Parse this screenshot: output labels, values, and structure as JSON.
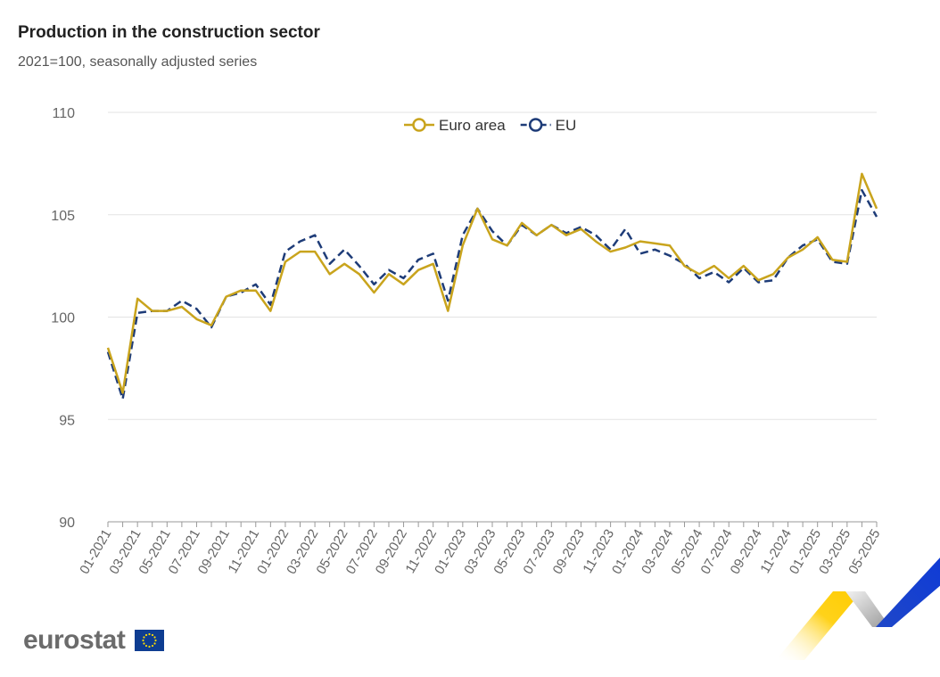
{
  "chart_data": {
    "type": "line",
    "title": "Production in the construction sector",
    "subtitle": "2021=100, seasonally adjusted series",
    "xlabel": "",
    "ylabel": "",
    "ylim": [
      90,
      110
    ],
    "yticks": [
      "110",
      "105",
      "100",
      "95",
      "90"
    ],
    "x": [
      "01-2021",
      "02-2021",
      "03-2021",
      "04-2021",
      "05-2021",
      "06-2021",
      "07-2021",
      "08-2021",
      "09-2021",
      "10-2021",
      "11-2021",
      "12-2021",
      "01-2022",
      "02-2022",
      "03-2022",
      "04-2022",
      "05-2022",
      "06-2022",
      "07-2022",
      "08-2022",
      "09-2022",
      "10-2022",
      "11-2022",
      "12-2022",
      "01-2023",
      "02-2023",
      "03-2023",
      "04-2023",
      "05-2023",
      "06-2023",
      "07-2023",
      "08-2023",
      "09-2023",
      "10-2023",
      "11-2023",
      "12-2023",
      "01-2024",
      "02-2024",
      "03-2024",
      "04-2024",
      "05-2024",
      "06-2024",
      "07-2024",
      "08-2024",
      "09-2024",
      "10-2024",
      "11-2024",
      "12-2024",
      "01-2025",
      "02-2025",
      "03-2025",
      "04-2025",
      "05-2025"
    ],
    "xtick_labels": [
      "01-2021",
      "03-2021",
      "05-2021",
      "07-2021",
      "09-2021",
      "11-2021",
      "01-2022",
      "03-2022",
      "05-2022",
      "07-2022",
      "09-2022",
      "11-2022",
      "01-2023",
      "03-2023",
      "05-2023",
      "07-2023",
      "09-2023",
      "11-2023",
      "01-2024",
      "03-2024",
      "05-2024",
      "07-2024",
      "09-2024",
      "11-2024",
      "01-2025",
      "03-2025",
      "05-2025"
    ],
    "legend_position": "top-center",
    "grid": true,
    "series": [
      {
        "name": "Euro area",
        "color": "#c9a41d",
        "style": "solid",
        "values": [
          98.5,
          96.3,
          100.9,
          100.3,
          100.3,
          100.5,
          99.9,
          99.6,
          101.0,
          101.3,
          101.3,
          100.3,
          102.7,
          103.2,
          103.2,
          102.1,
          102.6,
          102.1,
          101.2,
          102.1,
          101.6,
          102.3,
          102.6,
          100.3,
          103.5,
          105.3,
          103.8,
          103.5,
          104.6,
          104.0,
          104.5,
          104.0,
          104.3,
          103.7,
          103.2,
          103.4,
          103.7,
          103.6,
          103.5,
          102.5,
          102.1,
          102.5,
          101.9,
          102.5,
          101.8,
          102.1,
          102.9,
          103.3,
          103.9,
          102.8,
          102.7,
          107.0,
          105.3
        ]
      },
      {
        "name": "EU",
        "color": "#1e3c78",
        "style": "dashed",
        "values": [
          98.3,
          96.0,
          100.2,
          100.3,
          100.3,
          100.8,
          100.4,
          99.5,
          101.0,
          101.2,
          101.6,
          100.6,
          103.2,
          103.7,
          104.0,
          102.6,
          103.3,
          102.5,
          101.6,
          102.3,
          101.9,
          102.8,
          103.1,
          100.8,
          104.0,
          105.3,
          104.2,
          103.5,
          104.5,
          104.0,
          104.5,
          104.1,
          104.4,
          104.0,
          103.3,
          104.3,
          103.1,
          103.3,
          103.0,
          102.6,
          101.9,
          102.2,
          101.7,
          102.4,
          101.7,
          101.8,
          102.9,
          103.5,
          103.8,
          102.7,
          102.6,
          106.2,
          104.9
        ]
      }
    ]
  },
  "footer": {
    "brand": "eurostat"
  }
}
